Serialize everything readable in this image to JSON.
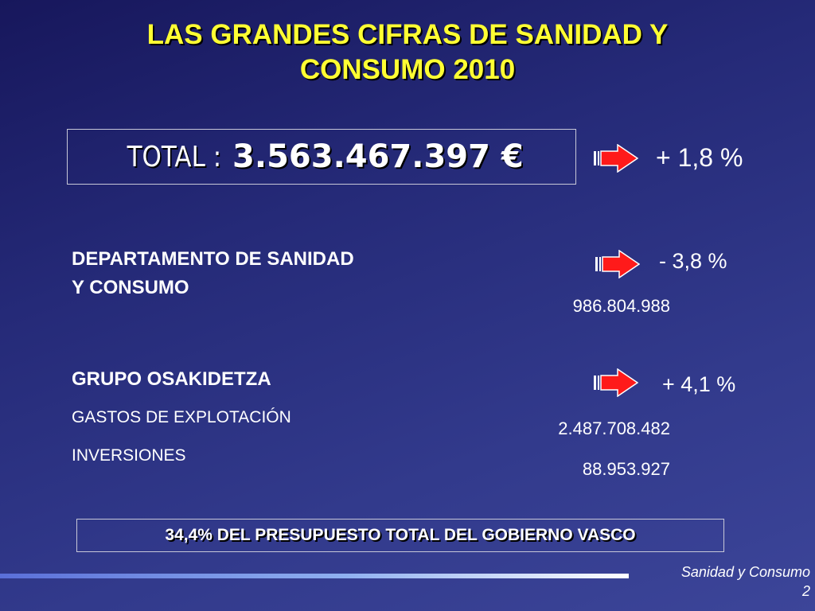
{
  "slide": {
    "title_line1": "LAS GRANDES CIFRAS DE  SANIDAD Y",
    "title_line2": "CONSUMO 2010",
    "total": {
      "label": "TOTAL :",
      "value": "3.563.467.397 €",
      "change": "+ 1,8 %"
    },
    "departamento": {
      "line1": "DEPARTAMENTO DE SANIDAD",
      "line2": "Y CONSUMO",
      "change": "- 3,8 %",
      "amount": "986.804.988"
    },
    "osakidetza": {
      "heading": "GRUPO OSAKIDETZA",
      "change": "+ 4,1 %",
      "items": [
        {
          "label": "GASTOS DE EXPLOTACIÓN",
          "amount": "2.487.708.482"
        },
        {
          "label": "INVERSIONES",
          "amount": "88.953.927"
        }
      ]
    },
    "share_note": "34,4% DEL PRESUPUESTO TOTAL DEL GOBIERNO VASCO",
    "footer": {
      "section": "Sanidad y Consumo",
      "page_number": "2"
    }
  },
  "colors": {
    "title": "#ffff33",
    "arrow": "#ff1a1a",
    "background": "#252a78"
  },
  "icons": {
    "change_indicator": "right-arrow-icon"
  }
}
